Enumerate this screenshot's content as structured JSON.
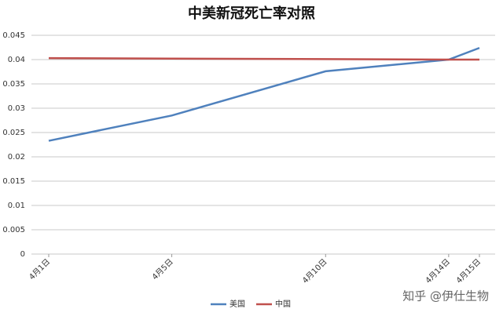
{
  "chart_data": {
    "type": "line",
    "title": "中美新冠死亡率对照",
    "x": [
      "4月1日",
      "4月5日",
      "4月10日",
      "4月14日",
      "4月15日"
    ],
    "series": [
      {
        "name": "美国",
        "color": "#4f81bd",
        "values": [
          0.0233,
          0.0285,
          0.0376,
          0.04,
          0.0424
        ]
      },
      {
        "name": "中国",
        "color": "#c0504d",
        "values": [
          0.0403,
          0.0402,
          0.0401,
          0.04,
          0.04
        ]
      }
    ],
    "ylim": [
      0,
      0.045
    ],
    "yticks": [
      0,
      0.005,
      0.01,
      0.015,
      0.02,
      0.025,
      0.03,
      0.035,
      0.04,
      0.045
    ],
    "grid": true,
    "legend": "bottom",
    "watermark": "知乎 @伊仕生物"
  }
}
